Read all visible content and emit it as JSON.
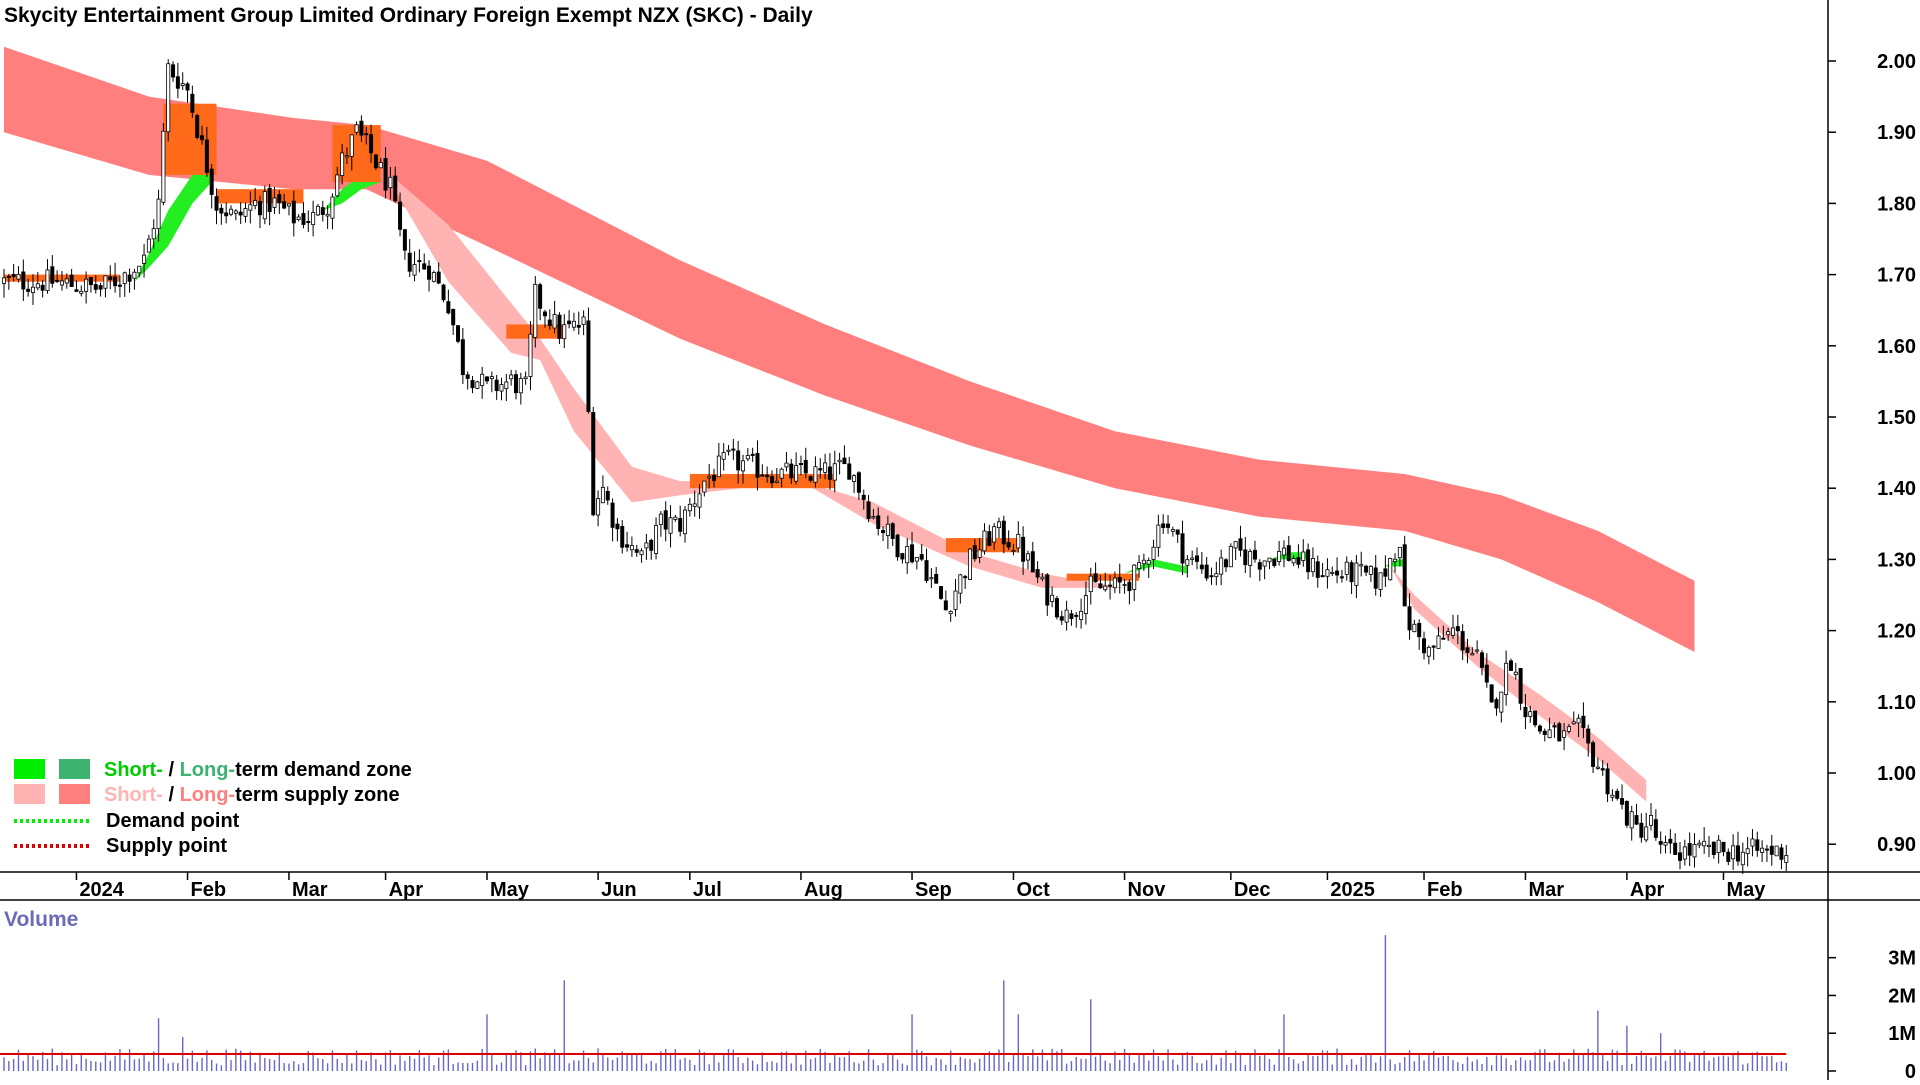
{
  "chart_data": {
    "type": "candlestick",
    "title": "Skycity Entertainment Group Limited Ordinary Foreign Exempt NZX (SKC) - Daily",
    "ylim": [
      0.86,
      2.04
    ],
    "yticks": [
      "2.00",
      "1.90",
      "1.80",
      "1.70",
      "1.60",
      "1.50",
      "1.40",
      "1.30",
      "1.20",
      "1.10",
      "1.00",
      "0.90"
    ],
    "xticks": [
      {
        "label": "2024",
        "index": 15
      },
      {
        "label": "Feb",
        "index": 38
      },
      {
        "label": "Mar",
        "index": 59
      },
      {
        "label": "Apr",
        "index": 79
      },
      {
        "label": "May",
        "index": 100
      },
      {
        "label": "Jun",
        "index": 123
      },
      {
        "label": "Jul",
        "index": 142
      },
      {
        "label": "Aug",
        "index": 165
      },
      {
        "label": "Sep",
        "index": 188
      },
      {
        "label": "Oct",
        "index": 209
      },
      {
        "label": "Nov",
        "index": 232
      },
      {
        "label": "Dec",
        "index": 254
      },
      {
        "label": "2025",
        "index": 274
      },
      {
        "label": "Feb",
        "index": 294
      },
      {
        "label": "Mar",
        "index": 315
      },
      {
        "label": "Apr",
        "index": 336
      },
      {
        "label": "May",
        "index": 356
      }
    ],
    "n_bars": 370,
    "price_anchors": [
      [
        0,
        1.69
      ],
      [
        10,
        1.69
      ],
      [
        20,
        1.68
      ],
      [
        25,
        1.7
      ],
      [
        29,
        1.72
      ],
      [
        32,
        1.8
      ],
      [
        34,
        1.99
      ],
      [
        38,
        1.96
      ],
      [
        41,
        1.88
      ],
      [
        44,
        1.8
      ],
      [
        48,
        1.78
      ],
      [
        52,
        1.8
      ],
      [
        56,
        1.8
      ],
      [
        60,
        1.78
      ],
      [
        64,
        1.78
      ],
      [
        67,
        1.8
      ],
      [
        70,
        1.86
      ],
      [
        73,
        1.9
      ],
      [
        76,
        1.87
      ],
      [
        80,
        1.82
      ],
      [
        83,
        1.72
      ],
      [
        88,
        1.71
      ],
      [
        92,
        1.66
      ],
      [
        95,
        1.57
      ],
      [
        100,
        1.54
      ],
      [
        105,
        1.55
      ],
      [
        108,
        1.54
      ],
      [
        110,
        1.67
      ],
      [
        115,
        1.62
      ],
      [
        120,
        1.63
      ],
      [
        122,
        1.38
      ],
      [
        124,
        1.4
      ],
      [
        127,
        1.34
      ],
      [
        132,
        1.3
      ],
      [
        136,
        1.35
      ],
      [
        140,
        1.35
      ],
      [
        145,
        1.41
      ],
      [
        150,
        1.44
      ],
      [
        155,
        1.43
      ],
      [
        160,
        1.42
      ],
      [
        165,
        1.42
      ],
      [
        170,
        1.42
      ],
      [
        175,
        1.43
      ],
      [
        180,
        1.36
      ],
      [
        185,
        1.32
      ],
      [
        190,
        1.3
      ],
      [
        195,
        1.23
      ],
      [
        200,
        1.3
      ],
      [
        205,
        1.34
      ],
      [
        210,
        1.32
      ],
      [
        215,
        1.26
      ],
      [
        220,
        1.22
      ],
      [
        225,
        1.26
      ],
      [
        230,
        1.26
      ],
      [
        235,
        1.28
      ],
      [
        240,
        1.36
      ],
      [
        245,
        1.3
      ],
      [
        250,
        1.28
      ],
      [
        255,
        1.31
      ],
      [
        260,
        1.3
      ],
      [
        265,
        1.31
      ],
      [
        270,
        1.29
      ],
      [
        275,
        1.28
      ],
      [
        280,
        1.28
      ],
      [
        285,
        1.27
      ],
      [
        289,
        1.33
      ],
      [
        290,
        1.22
      ],
      [
        295,
        1.17
      ],
      [
        300,
        1.2
      ],
      [
        305,
        1.16
      ],
      [
        308,
        1.09
      ],
      [
        312,
        1.16
      ],
      [
        315,
        1.09
      ],
      [
        318,
        1.06
      ],
      [
        323,
        1.05
      ],
      [
        326,
        1.06
      ],
      [
        330,
        1.01
      ],
      [
        334,
        0.96
      ],
      [
        338,
        0.92
      ],
      [
        341,
        0.93
      ],
      [
        343,
        0.89
      ]
    ],
    "supply_zone_long": {
      "color": "#ff7f7f",
      "upper": [
        [
          0,
          2.02
        ],
        [
          30,
          1.95
        ],
        [
          60,
          1.92
        ],
        [
          75,
          1.91
        ],
        [
          100,
          1.86
        ],
        [
          140,
          1.72
        ],
        [
          170,
          1.63
        ],
        [
          200,
          1.55
        ],
        [
          230,
          1.48
        ],
        [
          260,
          1.44
        ],
        [
          290,
          1.42
        ],
        [
          310,
          1.39
        ],
        [
          330,
          1.34
        ],
        [
          350,
          1.27
        ]
      ],
      "lower": [
        [
          0,
          1.9
        ],
        [
          30,
          1.84
        ],
        [
          60,
          1.82
        ],
        [
          75,
          1.82
        ],
        [
          100,
          1.74
        ],
        [
          140,
          1.61
        ],
        [
          170,
          1.53
        ],
        [
          200,
          1.46
        ],
        [
          230,
          1.4
        ],
        [
          260,
          1.36
        ],
        [
          290,
          1.34
        ],
        [
          310,
          1.3
        ],
        [
          330,
          1.24
        ],
        [
          350,
          1.17
        ]
      ]
    },
    "supply_zone_short": {
      "color": "#ffb3b3",
      "upper": [
        [
          80,
          1.84
        ],
        [
          92,
          1.77
        ],
        [
          105,
          1.66
        ],
        [
          111,
          1.61
        ],
        [
          118,
          1.54
        ],
        [
          130,
          1.43
        ],
        [
          140,
          1.41
        ],
        [
          165,
          1.41
        ],
        [
          180,
          1.38
        ],
        [
          200,
          1.31
        ],
        [
          215,
          1.28
        ],
        [
          232,
          1.26
        ],
        [
          250,
          1.28
        ],
        [
          270,
          1.28
        ],
        [
          287,
          1.29
        ],
        [
          292,
          1.25
        ],
        [
          305,
          1.17
        ],
        [
          318,
          1.11
        ],
        [
          330,
          1.05
        ],
        [
          340,
          0.99
        ]
      ],
      "lower": [
        [
          80,
          1.83
        ],
        [
          92,
          1.69
        ],
        [
          105,
          1.59
        ],
        [
          111,
          1.58
        ],
        [
          118,
          1.48
        ],
        [
          130,
          1.38
        ],
        [
          140,
          1.39
        ],
        [
          165,
          1.41
        ],
        [
          180,
          1.35
        ],
        [
          200,
          1.29
        ],
        [
          215,
          1.26
        ],
        [
          232,
          1.26
        ],
        [
          250,
          1.28
        ],
        [
          270,
          1.28
        ],
        [
          287,
          1.29
        ],
        [
          292,
          1.23
        ],
        [
          305,
          1.15
        ],
        [
          318,
          1.08
        ],
        [
          330,
          1.02
        ],
        [
          340,
          0.96
        ]
      ]
    },
    "demand_zone_short": [
      {
        "upper": [
          [
            27,
            1.69
          ],
          [
            30,
            1.73
          ],
          [
            34,
            1.79
          ],
          [
            39,
            1.84
          ],
          [
            43,
            1.85
          ]
        ],
        "lower": [
          [
            27,
            1.69
          ],
          [
            30,
            1.71
          ],
          [
            34,
            1.74
          ],
          [
            39,
            1.8
          ],
          [
            43,
            1.83
          ]
        ]
      },
      {
        "upper": [
          [
            66,
            1.79
          ],
          [
            70,
            1.82
          ],
          [
            74,
            1.84
          ],
          [
            78,
            1.84
          ]
        ],
        "lower": [
          [
            66,
            1.79
          ],
          [
            70,
            1.8
          ],
          [
            74,
            1.82
          ],
          [
            78,
            1.83
          ]
        ]
      },
      {
        "upper": [
          [
            232,
            1.28
          ],
          [
            238,
            1.3
          ],
          [
            245,
            1.29
          ]
        ],
        "lower": [
          [
            232,
            1.28
          ],
          [
            238,
            1.29
          ],
          [
            245,
            1.28
          ]
        ]
      },
      {
        "upper": [
          [
            262,
            1.3
          ],
          [
            266,
            1.31
          ],
          [
            270,
            1.31
          ]
        ],
        "lower": [
          [
            262,
            1.3
          ],
          [
            266,
            1.3
          ],
          [
            270,
            1.3
          ]
        ]
      },
      {
        "upper": [
          [
            286,
            1.29
          ],
          [
            288,
            1.3
          ],
          [
            290,
            1.3
          ]
        ],
        "lower": [
          [
            286,
            1.29
          ],
          [
            288,
            1.29
          ],
          [
            290,
            1.29
          ]
        ]
      }
    ],
    "overlap_zones": [
      {
        "x0": 33,
        "x1": 44,
        "y0": 1.84,
        "y1": 1.94
      },
      {
        "x0": 68,
        "x1": 78,
        "y0": 1.83,
        "y1": 1.91
      },
      {
        "x0": 0,
        "x1": 24,
        "y0": 1.69,
        "y1": 1.7
      },
      {
        "x0": 44,
        "x1": 62,
        "y0": 1.8,
        "y1": 1.82
      },
      {
        "x0": 104,
        "x1": 116,
        "y0": 1.61,
        "y1": 1.63
      },
      {
        "x0": 142,
        "x1": 172,
        "y0": 1.4,
        "y1": 1.42
      },
      {
        "x0": 195,
        "x1": 210,
        "y0": 1.31,
        "y1": 1.33
      },
      {
        "x0": 220,
        "x1": 235,
        "y0": 1.27,
        "y1": 1.28
      }
    ],
    "volume": {
      "title": "Volume",
      "yticks": [
        "3M",
        "2M",
        "1M",
        "0"
      ],
      "ylim": [
        0,
        3.6
      ],
      "avg_level": 0.45,
      "spikes": [
        [
          32,
          1.4
        ],
        [
          37,
          0.9
        ],
        [
          100,
          1.5
        ],
        [
          116,
          2.4
        ],
        [
          188,
          1.5
        ],
        [
          207,
          2.4
        ],
        [
          210,
          1.5
        ],
        [
          225,
          1.9
        ],
        [
          265,
          1.5
        ],
        [
          286,
          3.6
        ],
        [
          330,
          1.6
        ],
        [
          336,
          1.2
        ],
        [
          343,
          1.0
        ]
      ]
    },
    "legend": [
      {
        "part1": "Short-",
        "part2": " / ",
        "part3": "Long-",
        "part4": "term demand zone",
        "c1": "#00ee00",
        "c2": "#3cb371",
        "t1": "#00cc00",
        "t3": "#3cb371"
      },
      {
        "part1": "Short-",
        "part2": " / ",
        "part3": "Long-",
        "part4": "term supply zone",
        "c1": "#ffb3b3",
        "c2": "#ff7f7f",
        "t1": "#ffb3b3",
        "t3": "#ff7f7f"
      },
      {
        "label": "Demand point",
        "color": "#00ee00"
      },
      {
        "label": "Supply point",
        "color": "#dd0000"
      }
    ]
  }
}
